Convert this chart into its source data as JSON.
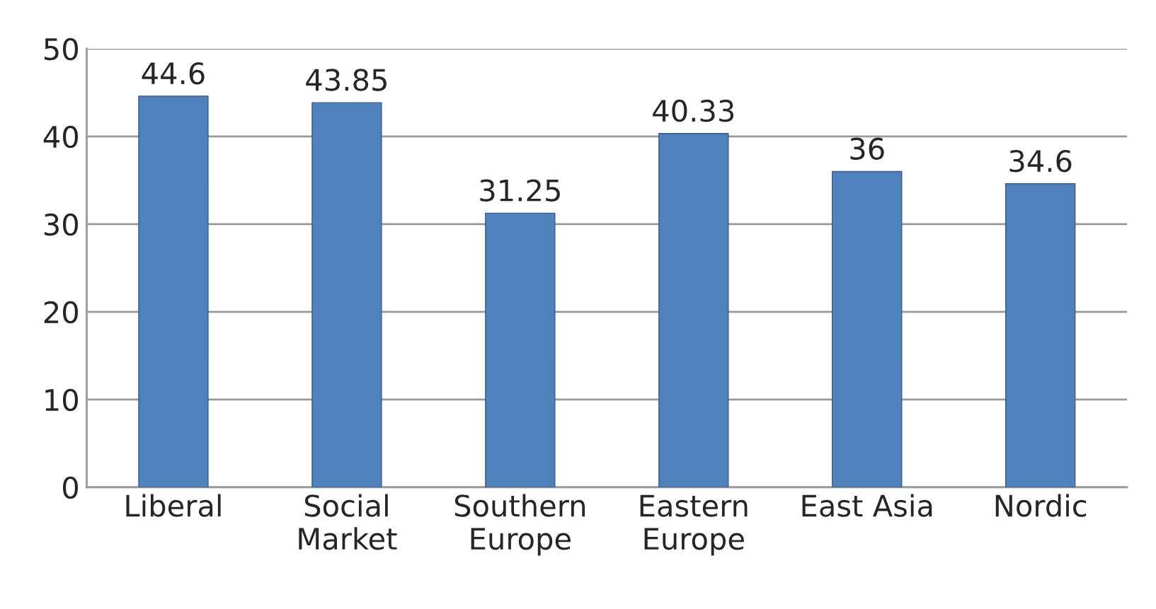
{
  "chart_data": {
    "type": "bar",
    "categories": [
      "Liberal",
      "Social Market",
      "Southern Europe",
      "Eastern Europe",
      "East Asia",
      "Nordic"
    ],
    "values": [
      44.6,
      43.85,
      31.25,
      40.33,
      36,
      34.6
    ],
    "color": "#4f81bd",
    "ylim": [
      0,
      50
    ],
    "yticks": [
      0,
      10,
      20,
      30,
      40,
      50
    ],
    "grid": "y",
    "data_labels": true
  }
}
